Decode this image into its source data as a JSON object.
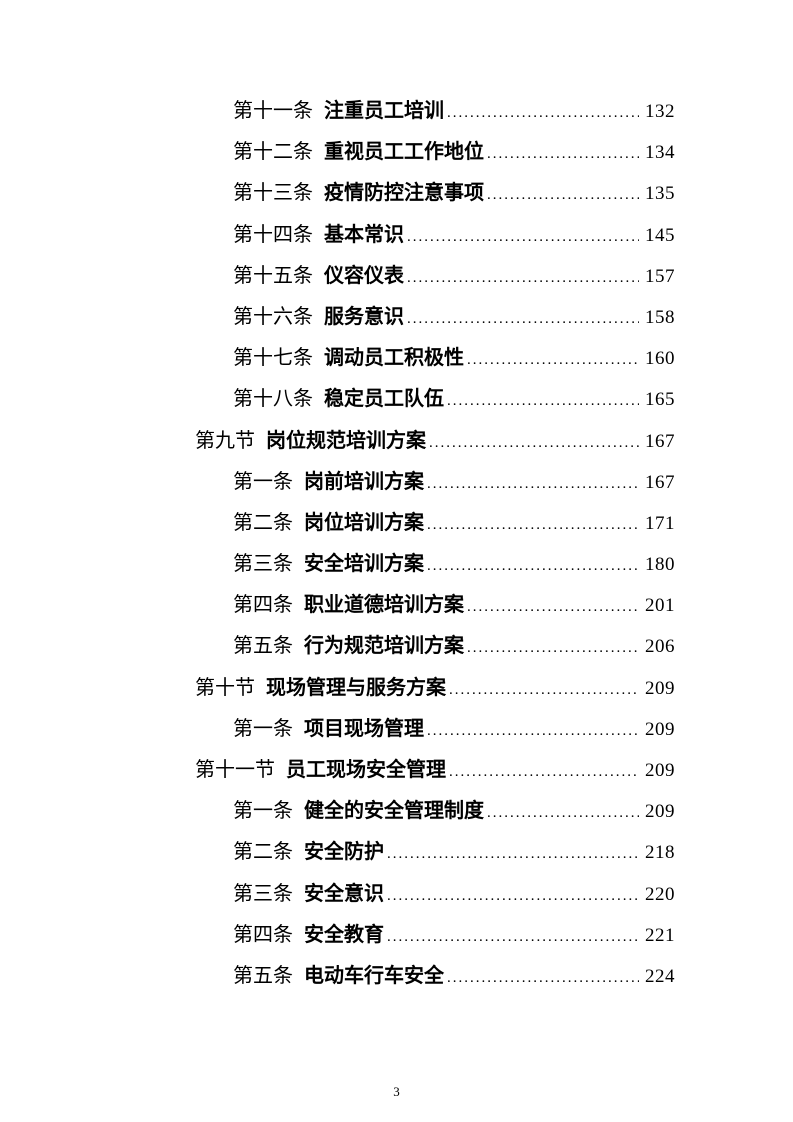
{
  "page": {
    "footer": {
      "page_number": "3"
    },
    "toc": {
      "entries": [
        {
          "level": 2,
          "label": "第十一条",
          "title": "注重员工培训",
          "page": "132"
        },
        {
          "level": 2,
          "label": "第十二条",
          "title": "重视员工工作地位",
          "page": "134"
        },
        {
          "level": 2,
          "label": "第十三条",
          "title": "疫情防控注意事项",
          "page": "135"
        },
        {
          "level": 2,
          "label": "第十四条",
          "title": "基本常识",
          "page": "145"
        },
        {
          "level": 2,
          "label": "第十五条",
          "title": "仪容仪表",
          "page": "157"
        },
        {
          "level": 2,
          "label": "第十六条",
          "title": "服务意识",
          "page": "158"
        },
        {
          "level": 2,
          "label": "第十七条",
          "title": "调动员工积极性",
          "page": "160"
        },
        {
          "level": 2,
          "label": "第十八条",
          "title": "稳定员工队伍",
          "page": "165"
        },
        {
          "level": 1,
          "label": "第九节",
          "title": "岗位规范培训方案",
          "page": "167"
        },
        {
          "level": 2,
          "label": "第一条",
          "title": "岗前培训方案",
          "page": "167"
        },
        {
          "level": 2,
          "label": "第二条",
          "title": "岗位培训方案",
          "page": "171"
        },
        {
          "level": 2,
          "label": "第三条",
          "title": "安全培训方案",
          "page": "180"
        },
        {
          "level": 2,
          "label": "第四条",
          "title": "职业道德培训方案",
          "page": "201"
        },
        {
          "level": 2,
          "label": "第五条",
          "title": "行为规范培训方案",
          "page": "206"
        },
        {
          "level": 1,
          "label": "第十节",
          "title": "现场管理与服务方案",
          "page": "209"
        },
        {
          "level": 2,
          "label": "第一条",
          "title": "项目现场管理",
          "page": "209"
        },
        {
          "level": 1,
          "label": "第十一节",
          "title": "员工现场安全管理",
          "page": "209"
        },
        {
          "level": 2,
          "label": "第一条",
          "title": "健全的安全管理制度",
          "page": "209"
        },
        {
          "level": 2,
          "label": "第二条",
          "title": "安全防护",
          "page": "218"
        },
        {
          "level": 2,
          "label": "第三条",
          "title": "安全意识",
          "page": "220"
        },
        {
          "level": 2,
          "label": "第四条",
          "title": "安全教育",
          "page": "221"
        },
        {
          "level": 2,
          "label": "第五条",
          "title": "电动车行车安全",
          "page": "224"
        }
      ]
    }
  }
}
